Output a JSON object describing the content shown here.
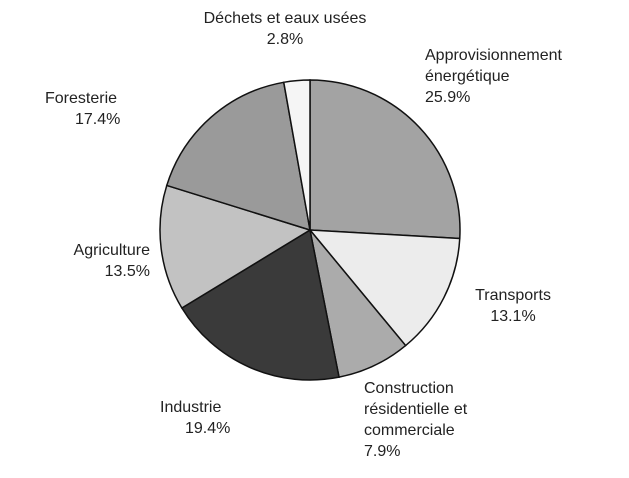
{
  "chart_data": {
    "type": "pie",
    "categories": [
      "Approvisionnement énergétique",
      "Transports",
      "Construction résidentielle et commerciale",
      "Industrie",
      "Agriculture",
      "Foresterie",
      "Déchets et eaux usées"
    ],
    "values": [
      25.9,
      13.1,
      7.9,
      19.4,
      13.5,
      17.4,
      2.8
    ],
    "value_labels": [
      "25.9%",
      "13.1%",
      "7.9%",
      "19.4%",
      "13.5%",
      "17.4%",
      "2.8%"
    ],
    "colors": [
      "#a3a3a3",
      "#ececec",
      "#ababab",
      "#3a3a3a",
      "#c2c2c2",
      "#9a9a9a",
      "#f5f5f5"
    ]
  }
}
